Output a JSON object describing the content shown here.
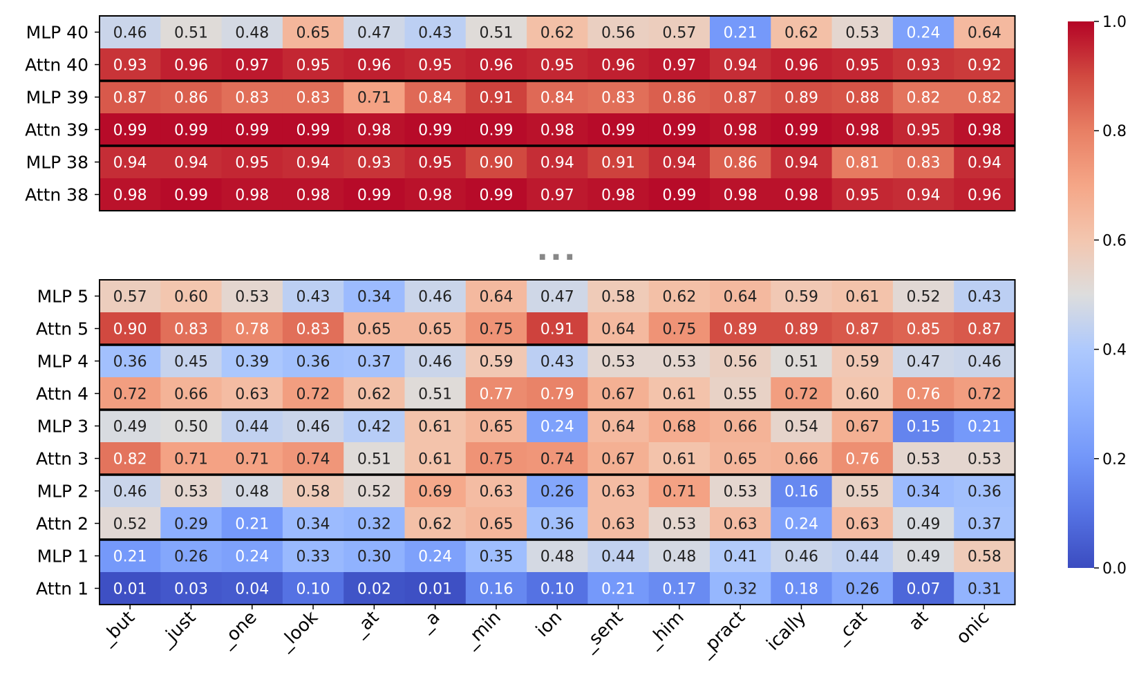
{
  "chart_data": {
    "type": "heatmap",
    "colormap": "coolwarm",
    "vmin": 0.0,
    "vmax": 1.0,
    "x_tokens": [
      "_but",
      "_just",
      "_one",
      "_look",
      "_at",
      "_a",
      "_min",
      "ion",
      "_sent",
      "_him",
      "_pract",
      "ically",
      "_cat",
      "at",
      "onic"
    ],
    "colorbar_ticks": [
      "0.0",
      "0.2",
      "0.4",
      "0.6",
      "0.8",
      "1.0"
    ],
    "ellipsis": "...",
    "panels": [
      {
        "name": "top",
        "rows": [
          {
            "label": "MLP 40",
            "values": [
              0.46,
              0.51,
              0.48,
              0.65,
              0.47,
              0.43,
              0.51,
              0.62,
              0.56,
              0.57,
              0.21,
              0.62,
              0.53,
              0.24,
              0.64
            ]
          },
          {
            "label": "Attn 40",
            "values": [
              0.93,
              0.96,
              0.97,
              0.95,
              0.96,
              0.95,
              0.96,
              0.95,
              0.96,
              0.97,
              0.94,
              0.96,
              0.95,
              0.93,
              0.92
            ]
          },
          {
            "label": "MLP 39",
            "values": [
              0.87,
              0.86,
              0.83,
              0.83,
              0.71,
              0.84,
              0.91,
              0.84,
              0.83,
              0.86,
              0.87,
              0.89,
              0.88,
              0.82,
              0.82
            ]
          },
          {
            "label": "Attn 39",
            "values": [
              0.99,
              0.99,
              0.99,
              0.99,
              0.98,
              0.99,
              0.99,
              0.98,
              0.99,
              0.99,
              0.98,
              0.99,
              0.98,
              0.95,
              0.98
            ]
          },
          {
            "label": "MLP 38",
            "values": [
              0.94,
              0.94,
              0.95,
              0.94,
              0.93,
              0.95,
              0.9,
              0.94,
              0.91,
              0.94,
              0.86,
              0.94,
              0.81,
              0.83,
              0.94
            ]
          },
          {
            "label": "Attn 38",
            "values": [
              0.98,
              0.99,
              0.98,
              0.98,
              0.99,
              0.98,
              0.99,
              0.97,
              0.98,
              0.99,
              0.98,
              0.98,
              0.95,
              0.94,
              0.96
            ]
          }
        ]
      },
      {
        "name": "bottom",
        "rows": [
          {
            "label": "MLP 5",
            "values": [
              0.57,
              0.6,
              0.53,
              0.43,
              0.34,
              0.46,
              0.64,
              0.47,
              0.58,
              0.62,
              0.64,
              0.59,
              0.61,
              0.52,
              0.43
            ]
          },
          {
            "label": "Attn 5",
            "values": [
              0.9,
              0.83,
              0.78,
              0.83,
              0.65,
              0.65,
              0.75,
              0.91,
              0.64,
              0.75,
              0.89,
              0.89,
              0.87,
              0.85,
              0.87
            ]
          },
          {
            "label": "MLP 4",
            "values": [
              0.36,
              0.45,
              0.39,
              0.36,
              0.37,
              0.46,
              0.59,
              0.43,
              0.53,
              0.53,
              0.56,
              0.51,
              0.59,
              0.47,
              0.46
            ]
          },
          {
            "label": "Attn 4",
            "values": [
              0.72,
              0.66,
              0.63,
              0.72,
              0.62,
              0.51,
              0.77,
              0.79,
              0.67,
              0.61,
              0.55,
              0.72,
              0.6,
              0.76,
              0.72
            ]
          },
          {
            "label": "MLP 3",
            "values": [
              0.49,
              0.5,
              0.44,
              0.46,
              0.42,
              0.61,
              0.65,
              0.24,
              0.64,
              0.68,
              0.66,
              0.54,
              0.67,
              0.15,
              0.21
            ]
          },
          {
            "label": "Attn 3",
            "values": [
              0.82,
              0.71,
              0.71,
              0.74,
              0.51,
              0.61,
              0.75,
              0.74,
              0.67,
              0.61,
              0.65,
              0.66,
              0.76,
              0.53,
              0.53
            ]
          },
          {
            "label": "MLP 2",
            "values": [
              0.46,
              0.53,
              0.48,
              0.58,
              0.52,
              0.69,
              0.63,
              0.26,
              0.63,
              0.71,
              0.53,
              0.16,
              0.55,
              0.34,
              0.36
            ]
          },
          {
            "label": "Attn 2",
            "values": [
              0.52,
              0.29,
              0.21,
              0.34,
              0.32,
              0.62,
              0.65,
              0.36,
              0.63,
              0.53,
              0.63,
              0.24,
              0.63,
              0.49,
              0.37
            ]
          },
          {
            "label": "MLP 1",
            "values": [
              0.21,
              0.26,
              0.24,
              0.33,
              0.3,
              0.24,
              0.35,
              0.48,
              0.44,
              0.48,
              0.41,
              0.46,
              0.44,
              0.49,
              0.58
            ]
          },
          {
            "label": "Attn 1",
            "values": [
              0.01,
              0.03,
              0.04,
              0.1,
              0.02,
              0.01,
              0.16,
              0.1,
              0.21,
              0.17,
              0.32,
              0.18,
              0.26,
              0.07,
              0.31
            ]
          }
        ]
      }
    ]
  }
}
